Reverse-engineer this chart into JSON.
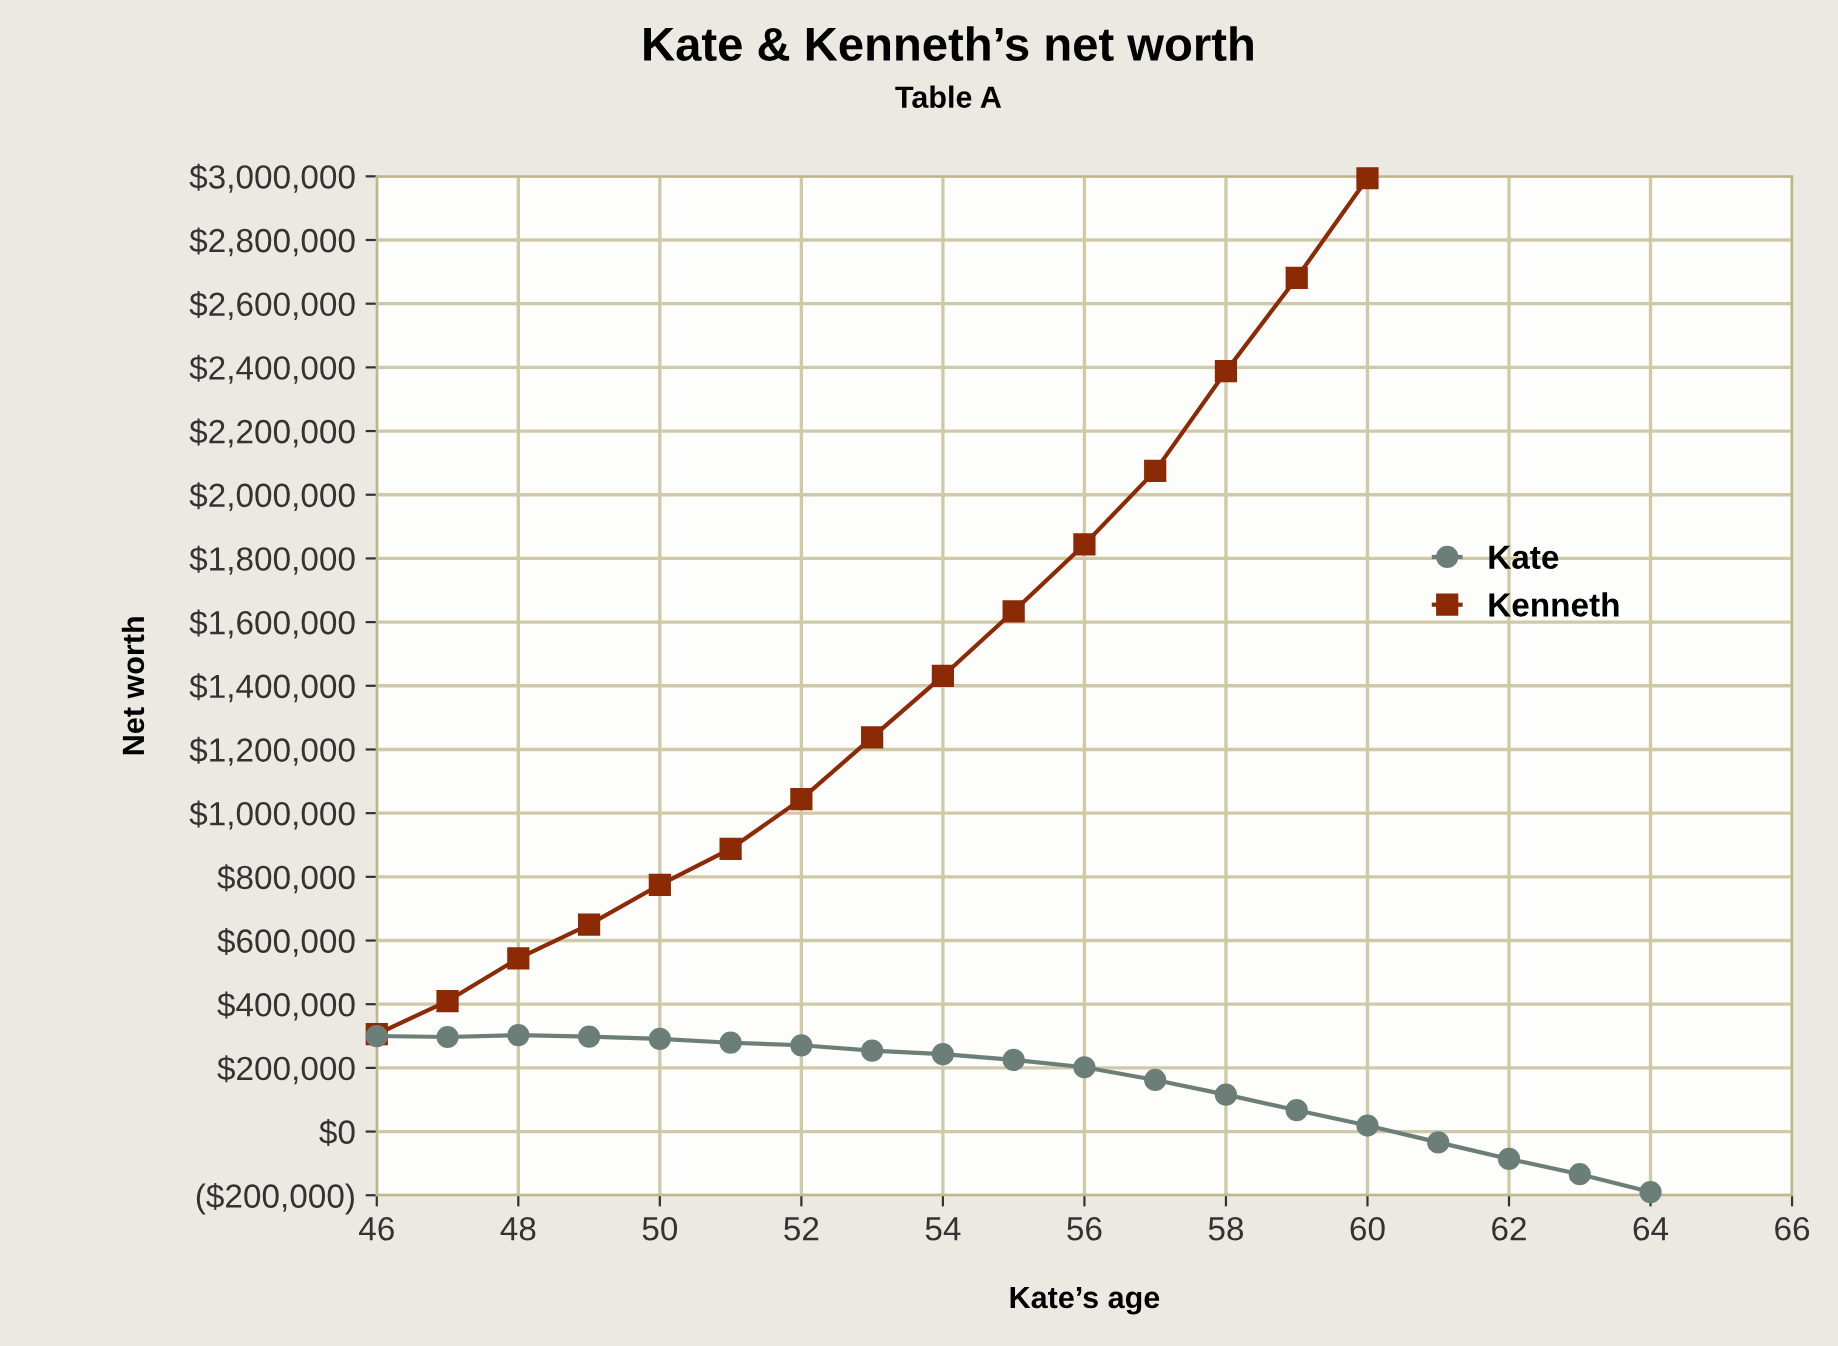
{
  "chart_data": {
    "type": "line",
    "title": "Kate & Kenneth’s net worth",
    "subtitle": "Table A",
    "xlabel": "Kate’s age",
    "ylabel": "Net worth",
    "x": [
      46,
      47,
      48,
      49,
      50,
      51,
      52,
      53,
      54,
      55,
      56,
      57,
      58,
      59,
      60,
      61,
      62,
      63,
      64
    ],
    "series": [
      {
        "name": "Kate",
        "color": "#6b7f78",
        "marker": "circle",
        "values": [
          300000,
          297000,
          303000,
          298000,
          291000,
          279000,
          271000,
          254000,
          243000,
          225000,
          202000,
          162000,
          116000,
          67000,
          19000,
          -34000,
          -86000,
          -134000,
          -190000
        ]
      },
      {
        "name": "Kenneth",
        "color": "#8b2a05",
        "marker": "square",
        "values": [
          306000,
          410000,
          544000,
          650000,
          775000,
          888000,
          1044000,
          1238000,
          1431000,
          1634000,
          1844000,
          2075000,
          2388000,
          2681000,
          2994000,
          null,
          null,
          null,
          null
        ]
      }
    ],
    "xlim": [
      46,
      66
    ],
    "xticks": [
      46,
      48,
      50,
      52,
      54,
      56,
      58,
      60,
      62,
      64,
      66
    ],
    "ylim": [
      -200000,
      3000000
    ],
    "yticks": [
      {
        "value": -200000,
        "label": "($200,000)"
      },
      {
        "value": 0,
        "label": "$0"
      },
      {
        "value": 200000,
        "label": "$200,000"
      },
      {
        "value": 400000,
        "label": "$400,000"
      },
      {
        "value": 600000,
        "label": "$600,000"
      },
      {
        "value": 800000,
        "label": "$800,000"
      },
      {
        "value": 1000000,
        "label": "$1,000,000"
      },
      {
        "value": 1200000,
        "label": "$1,200,000"
      },
      {
        "value": 1400000,
        "label": "$1,400,000"
      },
      {
        "value": 1600000,
        "label": "$1,600,000"
      },
      {
        "value": 1800000,
        "label": "$1,800,000"
      },
      {
        "value": 2000000,
        "label": "$2,000,000"
      },
      {
        "value": 2200000,
        "label": "$2,200,000"
      },
      {
        "value": 2400000,
        "label": "$2,400,000"
      },
      {
        "value": 2600000,
        "label": "$2,600,000"
      },
      {
        "value": 2800000,
        "label": "$2,800,000"
      },
      {
        "value": 3000000,
        "label": "$3,000,000"
      }
    ],
    "grid": true,
    "legend": "right",
    "line_style": "solid"
  }
}
